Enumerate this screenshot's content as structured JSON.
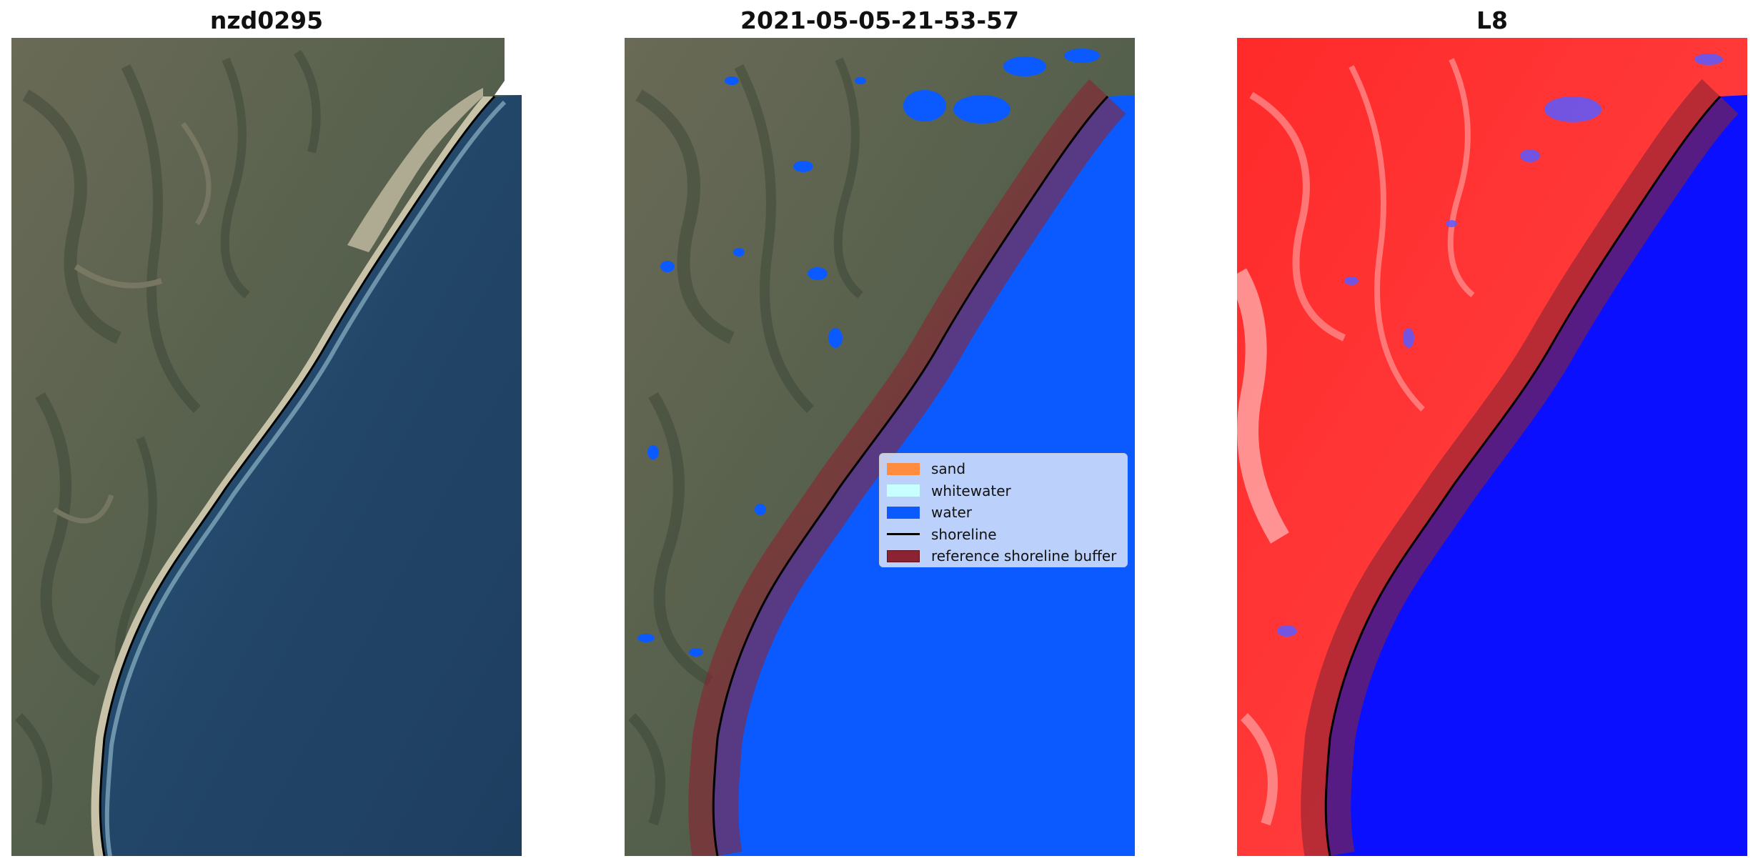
{
  "panels": [
    {
      "title": "nzd0295"
    },
    {
      "title": "2021-05-05-21-53-57"
    },
    {
      "title": "L8"
    }
  ],
  "legend": {
    "items": [
      {
        "label": "sand",
        "color": "#ff8c3f",
        "kind": "patch"
      },
      {
        "label": "whitewater",
        "color": "#c8ffff",
        "kind": "patch"
      },
      {
        "label": "water",
        "color": "#0a5aff",
        "kind": "patch"
      },
      {
        "label": "shoreline",
        "color": "#000000",
        "kind": "line"
      },
      {
        "label": "reference shoreline buffer",
        "color": "#8b2332",
        "kind": "patch"
      }
    ]
  },
  "colors": {
    "land_rgb": "#5d6452",
    "ocean_rgb": "#24476a",
    "classified_water": "#0a5aff",
    "buffer": "#8b2332",
    "index_land": "#ff2020",
    "index_water": "#0a10ff"
  }
}
